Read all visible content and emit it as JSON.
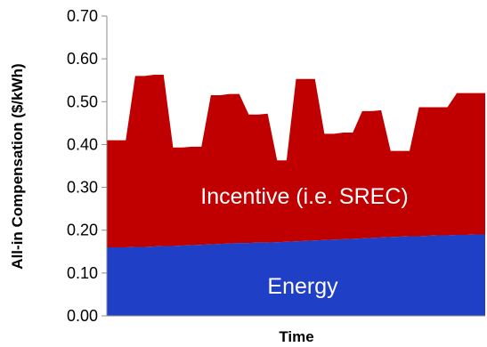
{
  "chart_data": {
    "type": "area",
    "xlabel": "Time",
    "ylabel": "All-in Compensation ($/kWh)",
    "ylim": [
      0,
      0.7
    ],
    "yticks": [
      "0.00",
      "0.10",
      "0.20",
      "0.30",
      "0.40",
      "0.50",
      "0.60",
      "0.70"
    ],
    "grid": false,
    "legend": "none",
    "series": [
      {
        "name": "Energy",
        "color": "#1f3fc6",
        "x": [
          0,
          1,
          2,
          3,
          4,
          5,
          6,
          7,
          8,
          9,
          10,
          11,
          12,
          13,
          14,
          15,
          16,
          17,
          18,
          19,
          20,
          21,
          22,
          23,
          24,
          25,
          26,
          27,
          28,
          29,
          30,
          31,
          32,
          33,
          34,
          35,
          36,
          37,
          38,
          39,
          40
        ],
        "values": [
          0.16,
          0.16,
          0.16,
          0.161,
          0.161,
          0.162,
          0.163,
          0.163,
          0.164,
          0.165,
          0.166,
          0.167,
          0.168,
          0.169,
          0.17,
          0.17,
          0.171,
          0.171,
          0.172,
          0.173,
          0.174,
          0.175,
          0.176,
          0.177,
          0.178,
          0.179,
          0.18,
          0.181,
          0.182,
          0.183,
          0.184,
          0.185,
          0.186,
          0.186,
          0.187,
          0.188,
          0.188,
          0.189,
          0.189,
          0.19,
          0.19
        ]
      },
      {
        "name": "Incentive (i.e. SREC)",
        "color": "#c00000",
        "x": [
          0,
          1,
          2,
          3,
          4,
          5,
          6,
          7,
          8,
          9,
          10,
          11,
          12,
          13,
          14,
          15,
          16,
          17,
          18,
          19,
          20,
          21,
          22,
          23,
          24,
          25,
          26,
          27,
          28,
          29,
          30,
          31,
          32,
          33,
          34,
          35,
          36,
          37,
          38,
          39,
          40
        ],
        "total": [
          0.41,
          0.41,
          0.41,
          0.56,
          0.56,
          0.563,
          0.563,
          0.393,
          0.393,
          0.395,
          0.395,
          0.515,
          0.515,
          0.518,
          0.518,
          0.47,
          0.47,
          0.472,
          0.363,
          0.363,
          0.553,
          0.553,
          0.553,
          0.425,
          0.425,
          0.428,
          0.428,
          0.478,
          0.478,
          0.48,
          0.385,
          0.385,
          0.385,
          0.487,
          0.487,
          0.487,
          0.487,
          0.52,
          0.52,
          0.52,
          0.52
        ]
      }
    ]
  }
}
